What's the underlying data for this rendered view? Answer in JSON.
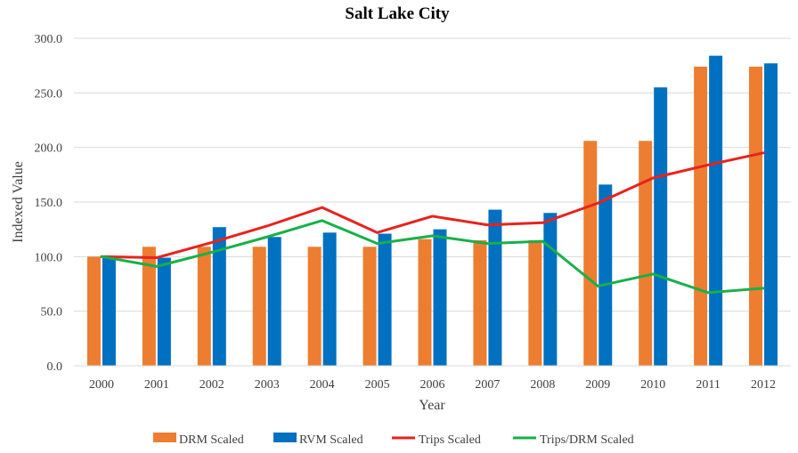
{
  "chart_data": {
    "type": "bar",
    "title": "Salt Lake City",
    "xlabel": "Year",
    "ylabel": "Indexed Value",
    "ylim": [
      0,
      300
    ],
    "yticks": [
      "0.0",
      "50.0",
      "100.0",
      "150.0",
      "200.0",
      "250.0",
      "300.0"
    ],
    "grid": true,
    "legend_position": "bottom",
    "categories": [
      "2000",
      "2001",
      "2002",
      "2003",
      "2004",
      "2005",
      "2006",
      "2007",
      "2008",
      "2009",
      "2010",
      "2011",
      "2012"
    ],
    "series": [
      {
        "name": "DRM Scaled",
        "type": "bar",
        "color": "#ED7D31",
        "values": [
          100,
          109,
          109,
          109,
          109,
          109,
          116,
          115,
          115,
          206,
          206,
          274,
          274
        ]
      },
      {
        "name": "RVM Scaled",
        "type": "bar",
        "color": "#0070C0",
        "values": [
          100,
          99,
          127,
          118,
          122,
          121,
          125,
          143,
          140,
          166,
          255,
          284,
          277
        ]
      },
      {
        "name": "Trips Scaled",
        "type": "line",
        "color": "#E8221E",
        "values": [
          100,
          99,
          113,
          128,
          145,
          122,
          137,
          129,
          131,
          149,
          172,
          184,
          195
        ]
      },
      {
        "name": "Trips/DRM Scaled",
        "type": "line",
        "color": "#17B04A",
        "values": [
          100,
          91,
          104,
          118,
          133,
          112,
          119,
          112,
          114,
          73,
          84,
          67,
          71
        ]
      }
    ]
  }
}
